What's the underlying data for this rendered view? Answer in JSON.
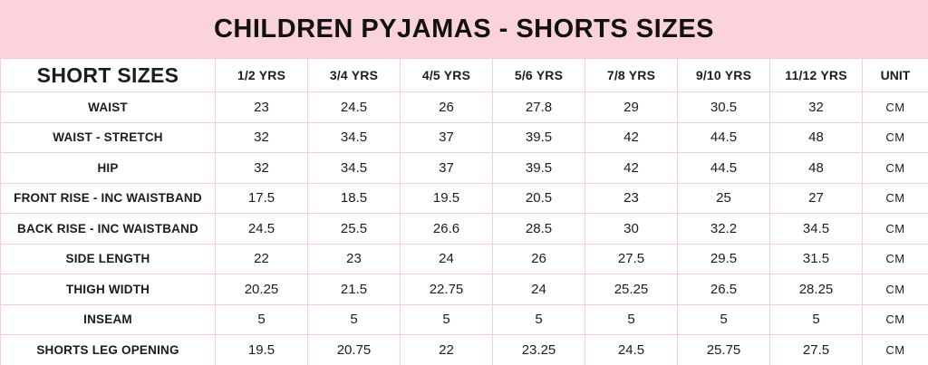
{
  "title": "CHILDREN PYJAMAS - SHORTS SIZES",
  "colors": {
    "banner_pink": "#fbd3dd",
    "border_pink": "#f6ccd6",
    "text_dark": "#1c1c1c"
  },
  "table": {
    "corner_label": "SHORT SIZES",
    "unit_label": "UNIT",
    "columns": [
      "1/2 YRS",
      "3/4 YRS",
      "4/5 YRS",
      "5/6 YRS",
      "7/8 YRS",
      "9/10 YRS",
      "11/12 YRS"
    ],
    "rows": [
      {
        "label": "WAIST",
        "values": [
          "23",
          "24.5",
          "26",
          "27.8",
          "29",
          "30.5",
          "32"
        ],
        "unit": "CM"
      },
      {
        "label": "WAIST - STRETCH",
        "values": [
          "32",
          "34.5",
          "37",
          "39.5",
          "42",
          "44.5",
          "48"
        ],
        "unit": "CM"
      },
      {
        "label": "HIP",
        "values": [
          "32",
          "34.5",
          "37",
          "39.5",
          "42",
          "44.5",
          "48"
        ],
        "unit": "CM"
      },
      {
        "label": "FRONT RISE - INC WAISTBAND",
        "values": [
          "17.5",
          "18.5",
          "19.5",
          "20.5",
          "23",
          "25",
          "27"
        ],
        "unit": "CM"
      },
      {
        "label": "BACK RISE - INC WAISTBAND",
        "values": [
          "24.5",
          "25.5",
          "26.6",
          "28.5",
          "30",
          "32.2",
          "34.5"
        ],
        "unit": "CM"
      },
      {
        "label": "SIDE LENGTH",
        "values": [
          "22",
          "23",
          "24",
          "26",
          "27.5",
          "29.5",
          "31.5"
        ],
        "unit": "CM"
      },
      {
        "label": "THIGH WIDTH",
        "values": [
          "20.25",
          "21.5",
          "22.75",
          "24",
          "25.25",
          "26.5",
          "28.25"
        ],
        "unit": "CM"
      },
      {
        "label": "INSEAM",
        "values": [
          "5",
          "5",
          "5",
          "5",
          "5",
          "5",
          "5"
        ],
        "unit": "CM"
      },
      {
        "label": "SHORTS LEG OPENING",
        "values": [
          "19.5",
          "20.75",
          "22",
          "23.25",
          "24.5",
          "25.75",
          "27.5"
        ],
        "unit": "CM"
      }
    ]
  },
  "chart_data": {
    "type": "table",
    "title": "CHILDREN PYJAMAS - SHORTS SIZES",
    "categories": [
      "1/2 YRS",
      "3/4 YRS",
      "4/5 YRS",
      "5/6 YRS",
      "7/8 YRS",
      "9/10 YRS",
      "11/12 YRS"
    ],
    "unit": "CM",
    "series": [
      {
        "name": "WAIST",
        "values": [
          23,
          24.5,
          26,
          27.8,
          29,
          30.5,
          32
        ]
      },
      {
        "name": "WAIST - STRETCH",
        "values": [
          32,
          34.5,
          37,
          39.5,
          42,
          44.5,
          48
        ]
      },
      {
        "name": "HIP",
        "values": [
          32,
          34.5,
          37,
          39.5,
          42,
          44.5,
          48
        ]
      },
      {
        "name": "FRONT RISE - INC WAISTBAND",
        "values": [
          17.5,
          18.5,
          19.5,
          20.5,
          23,
          25,
          27
        ]
      },
      {
        "name": "BACK RISE - INC WAISTBAND",
        "values": [
          24.5,
          25.5,
          26.6,
          28.5,
          30,
          32.2,
          34.5
        ]
      },
      {
        "name": "SIDE LENGTH",
        "values": [
          22,
          23,
          24,
          26,
          27.5,
          29.5,
          31.5
        ]
      },
      {
        "name": "THIGH WIDTH",
        "values": [
          20.25,
          21.5,
          22.75,
          24,
          25.25,
          26.5,
          28.25
        ]
      },
      {
        "name": "INSEAM",
        "values": [
          5,
          5,
          5,
          5,
          5,
          5,
          5
        ]
      },
      {
        "name": "SHORTS LEG OPENING",
        "values": [
          19.5,
          20.75,
          22,
          23.25,
          24.5,
          25.75,
          27.5
        ]
      }
    ]
  }
}
